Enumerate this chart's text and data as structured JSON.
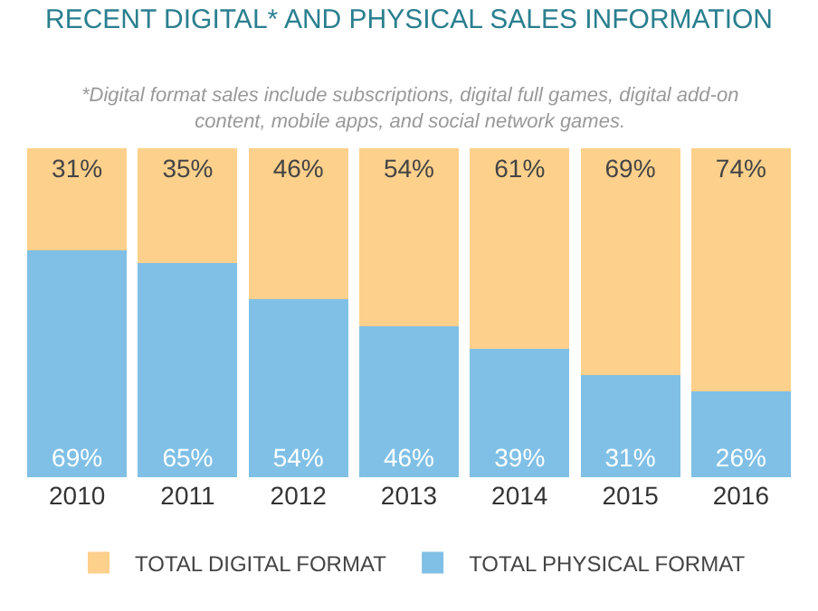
{
  "chart_data": {
    "type": "bar",
    "stacked": true,
    "title": "RECENT DIGITAL* AND PHYSICAL SALES INFORMATION",
    "subtitle": "*Digital format sales include subscriptions, digital full games, digital add-on content, mobile apps, and social network games.",
    "categories": [
      "2010",
      "2011",
      "2012",
      "2013",
      "2014",
      "2015",
      "2016"
    ],
    "series": [
      {
        "name": "TOTAL PHYSICAL FORMAT",
        "color": "#80c0e6",
        "values": [
          69,
          65,
          54,
          46,
          39,
          31,
          26
        ],
        "value_labels": [
          "69%",
          "65%",
          "54%",
          "46%",
          "39%",
          "31%",
          "26%"
        ]
      },
      {
        "name": "TOTAL DIGITAL FORMAT",
        "color": "#fdd08c",
        "values": [
          31,
          35,
          46,
          54,
          61,
          69,
          74
        ],
        "value_labels": [
          "31%",
          "35%",
          "46%",
          "54%",
          "61%",
          "69%",
          "74%"
        ]
      }
    ],
    "legend": "bottom"
  }
}
